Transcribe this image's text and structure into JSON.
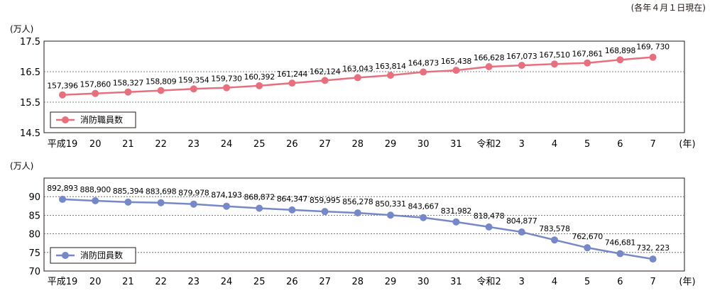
{
  "note": "(各年４月１日現在)",
  "chart_data": [
    {
      "type": "line",
      "unit_label": "(万人)",
      "x_unit": "(年)",
      "categories": [
        "平成19",
        "20",
        "21",
        "22",
        "23",
        "24",
        "25",
        "26",
        "27",
        "28",
        "29",
        "30",
        "31",
        "令和2",
        "3",
        "4",
        "5",
        "6",
        "7"
      ],
      "series": [
        {
          "name": "消防職員数",
          "color": "#e8707e",
          "values": [
            157396,
            157860,
            158327,
            158809,
            159354,
            159730,
            160392,
            161244,
            162124,
            163043,
            163814,
            164873,
            165438,
            166628,
            167073,
            167510,
            167861,
            168898,
            169730
          ],
          "labels": [
            "157,396",
            "157,860",
            "158,327",
            "158,809",
            "159,354",
            "159,730",
            "160,392",
            "161,244",
            "162,124",
            "163,043",
            "163,814",
            "164,873",
            "165,438",
            "166,628",
            "167,073",
            "167,510",
            "167,861",
            "168,898",
            "169, 730"
          ]
        }
      ],
      "y_ticks": [
        "17.5",
        "16.5",
        "15.5",
        "14.5"
      ],
      "ylim": [
        14.5,
        17.5
      ],
      "grid": true,
      "legend": "left"
    },
    {
      "type": "line",
      "unit_label": "(万人)",
      "x_unit": "(年)",
      "categories": [
        "平成19",
        "20",
        "21",
        "22",
        "23",
        "24",
        "25",
        "26",
        "27",
        "28",
        "29",
        "30",
        "31",
        "令和2",
        "3",
        "4",
        "5",
        "6",
        "7"
      ],
      "series": [
        {
          "name": "消防団員数",
          "color": "#7688c8",
          "values": [
            892893,
            888900,
            885394,
            883698,
            879978,
            874193,
            868872,
            864347,
            859995,
            856278,
            850331,
            843667,
            831982,
            818478,
            804877,
            783578,
            762670,
            746681,
            732223
          ],
          "labels": [
            "892,893",
            "888,900",
            "885,394",
            "883,698",
            "879,978",
            "874,193",
            "868,872",
            "864,347",
            "859,995",
            "856,278",
            "850,331",
            "843,667",
            "831,982",
            "818,478",
            "804,877",
            "783,578",
            "762,670",
            "746,681",
            "732, 223"
          ]
        }
      ],
      "y_ticks": [
        "90",
        "85",
        "80",
        "75",
        "70"
      ],
      "ylim": [
        70,
        95
      ],
      "grid": true,
      "legend": "left"
    }
  ]
}
